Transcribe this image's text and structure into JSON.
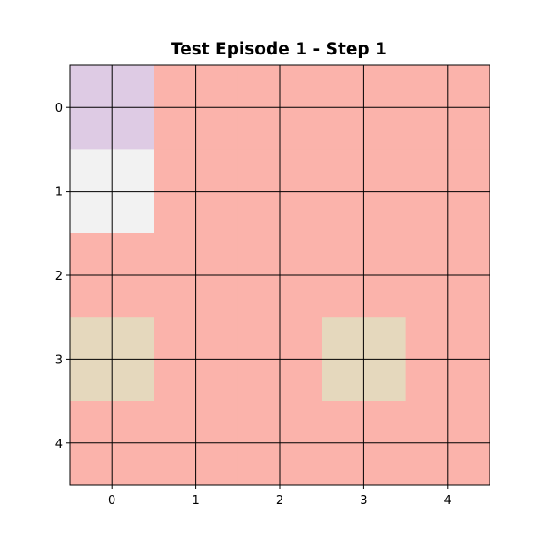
{
  "title": "Test Episode 1 - Step 1",
  "grid": {
    "rows": 5,
    "cols": 5,
    "default_color": "#fbb3ab",
    "line_color": "#000000",
    "cells": [
      {
        "x": 0,
        "y": 0,
        "color": "#decbe4",
        "label": "lavender"
      },
      {
        "x": 0,
        "y": 1,
        "color": "#f2f2f2",
        "label": "light-gray"
      },
      {
        "x": 0,
        "y": 3,
        "color": "#e5d8bd",
        "label": "beige"
      },
      {
        "x": 3,
        "y": 3,
        "color": "#e5d8bd",
        "label": "beige"
      }
    ]
  },
  "x_ticks": [
    "0",
    "1",
    "2",
    "3",
    "4"
  ],
  "y_ticks": [
    "0",
    "1",
    "2",
    "3",
    "4"
  ]
}
